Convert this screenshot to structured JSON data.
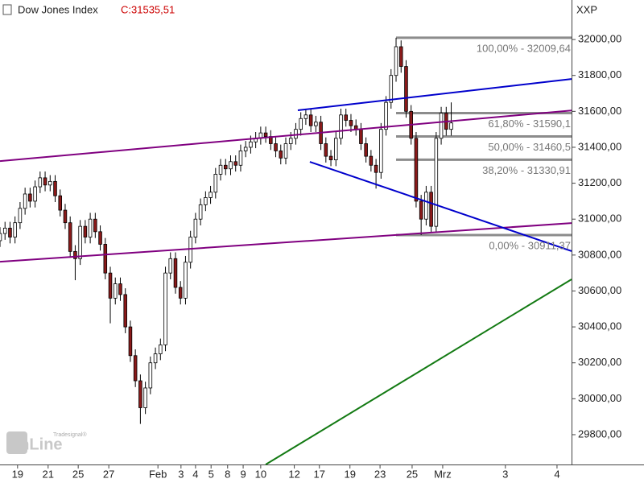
{
  "chart_data": {
    "type": "candlestick",
    "title": "Dow Jones Index",
    "last_label": "C:31535,51",
    "exchange": "XXP",
    "logo_small": "Tradesignal®",
    "logo": "onLine",
    "up_color": "#ffffff",
    "down_color": "#8b1a1a",
    "xlim": [
      0,
      114
    ],
    "ylim": [
      29634,
      32220
    ],
    "yticks": [
      {
        "value": 29800,
        "label": "29800,00"
      },
      {
        "value": 30000,
        "label": "30000,00"
      },
      {
        "value": 30200,
        "label": "30200,00"
      },
      {
        "value": 30400,
        "label": "30400,00"
      },
      {
        "value": 30600,
        "label": "30600,00"
      },
      {
        "value": 30800,
        "label": "30800,00"
      },
      {
        "value": 31000,
        "label": "31000,00"
      },
      {
        "value": 31200,
        "label": "31200,00"
      },
      {
        "value": 31400,
        "label": "31400,00"
      },
      {
        "value": 31600,
        "label": "31600,00"
      },
      {
        "value": 31800,
        "label": "31800,00"
      },
      {
        "value": 32000,
        "label": "32000,00"
      }
    ],
    "xticks": [
      {
        "value": 3.5,
        "label": "19"
      },
      {
        "value": 9.6,
        "label": "21"
      },
      {
        "value": 15.6,
        "label": "25"
      },
      {
        "value": 21.7,
        "label": "27"
      },
      {
        "value": 31.5,
        "label": "Feb"
      },
      {
        "value": 36.1,
        "label": "3"
      },
      {
        "value": 39,
        "label": "4"
      },
      {
        "value": 42.1,
        "label": "5"
      },
      {
        "value": 45.4,
        "label": "8"
      },
      {
        "value": 48.5,
        "label": "9"
      },
      {
        "value": 52,
        "label": "10"
      },
      {
        "value": 58.7,
        "label": "12"
      },
      {
        "value": 63.7,
        "label": "17"
      },
      {
        "value": 69.8,
        "label": "19"
      },
      {
        "value": 75.8,
        "label": "23"
      },
      {
        "value": 82.2,
        "label": "25"
      },
      {
        "value": 88.3,
        "label": "Mrz"
      },
      {
        "value": 100.8,
        "label": "3"
      },
      {
        "value": 111.1,
        "label": "4"
      }
    ],
    "x": [
      0,
      1,
      2,
      3,
      4,
      5,
      6,
      7,
      8,
      9,
      10,
      11,
      12,
      13,
      14,
      15,
      16,
      17,
      18,
      19,
      20,
      21,
      22,
      23,
      24,
      25,
      26,
      27,
      28,
      29,
      30,
      31,
      32,
      33,
      34,
      35,
      36,
      37,
      38,
      39,
      40,
      41,
      42,
      43,
      44,
      45,
      46,
      47,
      48,
      49,
      50,
      51,
      52,
      53,
      54,
      55,
      56,
      57,
      58,
      59,
      60,
      61,
      62,
      63,
      64,
      65,
      66,
      67,
      68,
      69,
      70,
      71,
      72,
      73,
      74,
      75,
      76,
      77,
      78,
      79,
      80,
      81,
      82,
      83,
      84,
      85,
      86,
      87,
      88,
      89,
      90
    ],
    "open": [
      30880,
      30920,
      30950,
      30900,
      30980,
      31060,
      31140,
      31100,
      31180,
      31230,
      31190,
      31210,
      31130,
      31050,
      30980,
      30820,
      30780,
      30960,
      30900,
      31000,
      30930,
      30860,
      30700,
      30560,
      30640,
      30580,
      30400,
      30240,
      30100,
      29950,
      30060,
      30200,
      30250,
      30300,
      30700,
      30780,
      30620,
      30560,
      30760,
      30900,
      31000,
      31080,
      31120,
      31150,
      31250,
      31300,
      31280,
      31320,
      31300,
      31380,
      31400,
      31430,
      31450,
      31480,
      31460,
      31420,
      31380,
      31340,
      31420,
      31450,
      31500,
      31560,
      31580,
      31520,
      31540,
      31420,
      31350,
      31330,
      31450,
      31580,
      31550,
      31520,
      31500,
      31420,
      31350,
      31300,
      31260,
      31500,
      31650,
      31800,
      31960,
      31850,
      31600,
      31450,
      31100,
      31000,
      31150,
      30960,
      31450,
      31590,
      31500
    ],
    "high": [
      30955,
      30985,
      30985,
      31015,
      31095,
      31175,
      31175,
      31215,
      31265,
      31265,
      31245,
      31245,
      31165,
      31085,
      31015,
      30855,
      30995,
      30995,
      31035,
      31035,
      30965,
      30895,
      30735,
      30675,
      30675,
      30615,
      30435,
      30275,
      30135,
      30095,
      30235,
      30285,
      30335,
      30735,
      30815,
      30815,
      30655,
      30795,
      30935,
      31035,
      31115,
      31155,
      31185,
      31285,
      31335,
      31335,
      31355,
      31355,
      31415,
      31435,
      31465,
      31485,
      31515,
      31515,
      31495,
      31455,
      31415,
      31455,
      31485,
      31535,
      31595,
      31615,
      31615,
      31575,
      31575,
      31455,
      31385,
      31485,
      31615,
      31615,
      31585,
      31555,
      31535,
      31455,
      31385,
      31335,
      31535,
      31685,
      31835,
      32009.64,
      31995,
      31885,
      31635,
      31485,
      31135,
      31185,
      31185,
      31485,
      31625,
      31625,
      31650
    ],
    "low": [
      30845,
      30885,
      30865,
      30865,
      30945,
      31025,
      31065,
      31065,
      31145,
      31155,
      31155,
      31095,
      31015,
      30945,
      30785,
      30660,
      30745,
      30865,
      30865,
      30895,
      30825,
      30665,
      30420,
      30525,
      30545,
      30365,
      30205,
      30065,
      29860,
      29915,
      30025,
      30165,
      30215,
      30265,
      30665,
      30585,
      30525,
      30525,
      30725,
      30865,
      30965,
      31045,
      31085,
      31115,
      31215,
      31245,
      31245,
      31265,
      31265,
      31345,
      31365,
      31395,
      31415,
      31425,
      31385,
      31345,
      31305,
      31305,
      31385,
      31415,
      31465,
      31525,
      31485,
      31485,
      31385,
      31315,
      31295,
      31295,
      31415,
      31515,
      31485,
      31465,
      31385,
      31315,
      31265,
      31170,
      31225,
      31465,
      31615,
      31765,
      31815,
      31565,
      31415,
      31065,
      30911.37,
      30965,
      30925,
      30925,
      31415,
      31465,
      31465
    ],
    "close": [
      30920,
      30950,
      30900,
      30980,
      31060,
      31140,
      31100,
      31180,
      31230,
      31190,
      31210,
      31130,
      31050,
      30980,
      30820,
      30780,
      30960,
      30900,
      31000,
      30930,
      30860,
      30700,
      30560,
      30640,
      30580,
      30400,
      30240,
      30100,
      29950,
      30060,
      30200,
      30250,
      30300,
      30700,
      30780,
      30620,
      30560,
      30760,
      30900,
      31000,
      31080,
      31120,
      31150,
      31250,
      31300,
      31280,
      31320,
      31300,
      31380,
      31400,
      31430,
      31450,
      31480,
      31460,
      31420,
      31380,
      31340,
      31420,
      31450,
      31500,
      31560,
      31580,
      31520,
      31540,
      31420,
      31350,
      31330,
      31450,
      31580,
      31550,
      31520,
      31500,
      31420,
      31350,
      31300,
      31260,
      31500,
      31650,
      31800,
      31960,
      31850,
      31600,
      31450,
      31100,
      31000,
      31150,
      30960,
      31450,
      31590,
      31500,
      31535.51
    ],
    "trendlines": [
      {
        "color": "#800080",
        "x": [
          0,
          114
        ],
        "y": [
          31323,
          31605
        ]
      },
      {
        "color": "#800080",
        "x": [
          0,
          114
        ],
        "y": [
          30763,
          30978
        ]
      },
      {
        "color": "#0000cc",
        "x": [
          59.4,
          114
        ],
        "y": [
          31606,
          31780
        ]
      },
      {
        "color": "#0000cc",
        "x": [
          61.8,
          114
        ],
        "y": [
          31319,
          30822
        ]
      },
      {
        "color": "#137a13",
        "x": [
          53,
          114
        ],
        "y": [
          29634,
          30665
        ]
      }
    ],
    "fib_color": "#8c8c8c",
    "fib_start": 79,
    "fib_levels": [
      {
        "value": 32009.64,
        "label": "100,00% - 32009,64"
      },
      {
        "value": 31590.1,
        "label": "61,80% - 31590,1"
      },
      {
        "value": 31460.5,
        "label": "50,00% - 31460,5"
      },
      {
        "value": 31330.91,
        "label": "38,20% - 31330,91"
      },
      {
        "value": 30911.37,
        "label": "0,00% - 30911,37"
      }
    ]
  }
}
